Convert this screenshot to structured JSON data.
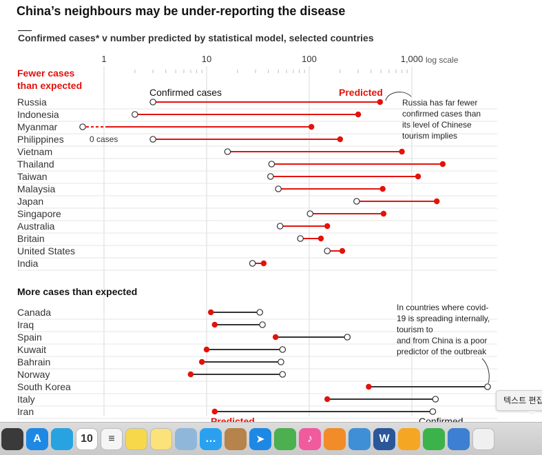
{
  "header": {
    "title": "China’s neighbours may be under-reporting the disease",
    "subtitle": "Confirmed cases* v number predicted by statistical model, selected countries"
  },
  "chart_data": {
    "type": "dot-plot",
    "scale": "log",
    "xlim": [
      0.5,
      1100
    ],
    "ticks": [
      {
        "value": 1,
        "label": "1"
      },
      {
        "value": 10,
        "label": "10"
      },
      {
        "value": 100,
        "label": "100"
      },
      {
        "value": 1000,
        "label": "1,000"
      }
    ],
    "scale_label": "log scale",
    "legend": {
      "confirmed": "Confirmed cases",
      "predicted": "Predicted",
      "zero_cases": "0 cases"
    },
    "groups": [
      {
        "heading_line1": "Fewer cases",
        "heading_line2": "than expected",
        "countries": [
          {
            "name": "Russia",
            "confirmed": 3,
            "predicted": 490
          },
          {
            "name": "Indonesia",
            "confirmed": 2,
            "predicted": 300
          },
          {
            "name": "Myanmar",
            "confirmed": 0,
            "predicted": 105
          },
          {
            "name": "Philippines",
            "confirmed": 3,
            "predicted": 200
          },
          {
            "name": "Vietnam",
            "confirmed": 16,
            "predicted": 800
          },
          {
            "name": "Thailand",
            "confirmed": 43,
            "predicted": 2000
          },
          {
            "name": "Taiwan",
            "confirmed": 42,
            "predicted": 1150
          },
          {
            "name": "Malaysia",
            "confirmed": 50,
            "predicted": 520
          },
          {
            "name": "Japan",
            "confirmed": 290,
            "predicted": 1750
          },
          {
            "name": "Singapore",
            "confirmed": 102,
            "predicted": 530
          },
          {
            "name": "Australia",
            "confirmed": 52,
            "predicted": 150
          },
          {
            "name": "Britain",
            "confirmed": 82,
            "predicted": 130
          },
          {
            "name": "United States",
            "confirmed": 150,
            "predicted": 210
          },
          {
            "name": "India",
            "confirmed": 28,
            "predicted": 36
          }
        ]
      },
      {
        "heading_line1": "More cases than expected",
        "heading_line2": "",
        "countries": [
          {
            "name": "Canada",
            "confirmed": 33,
            "predicted": 11
          },
          {
            "name": "Iraq",
            "confirmed": 35,
            "predicted": 12
          },
          {
            "name": "Spain",
            "confirmed": 235,
            "predicted": 47
          },
          {
            "name": "Kuwait",
            "confirmed": 55,
            "predicted": 10
          },
          {
            "name": "Bahrain",
            "confirmed": 53,
            "predicted": 9
          },
          {
            "name": "Norway",
            "confirmed": 55,
            "predicted": 7
          },
          {
            "name": "South Korea",
            "confirmed": 5800,
            "predicted": 380
          },
          {
            "name": "Italy",
            "confirmed": 1700,
            "predicted": 150
          },
          {
            "name": "Iran",
            "confirmed": 1600,
            "predicted": 12
          }
        ]
      }
    ],
    "annotations": {
      "russia": [
        "Russia has far fewer",
        "confirmed cases than",
        "its level of Chinese",
        "tourism implies"
      ],
      "korea": [
        "In countries where covid-",
        "19 is spreading internally,",
        "tourism to",
        "and from China is a poor",
        "predictor of the outbreak"
      ]
    },
    "bottom_labels": {
      "predicted": "Predicted",
      "confirmed": "Confirmed"
    },
    "colors": {
      "red": "#e3120b",
      "dark": "#121212",
      "grid": "#d9d9d9"
    }
  },
  "tooltip": {
    "text": "텍스트 편집"
  },
  "dock": {
    "items": [
      {
        "name": "dashboard-icon",
        "label": "",
        "color": "#3a3a3a"
      },
      {
        "name": "app-store-icon",
        "label": "A",
        "color": "#1e88e5"
      },
      {
        "name": "blue-app-icon",
        "label": "",
        "color": "#29a3e0"
      },
      {
        "name": "calendar-icon",
        "label": "10",
        "color": "#ffffff"
      },
      {
        "name": "reminders-icon",
        "label": "≡",
        "color": "#f5f5f5"
      },
      {
        "name": "stickies-icon",
        "label": "",
        "color": "#f7d84a"
      },
      {
        "name": "notes-icon",
        "label": "",
        "color": "#fbe27a"
      },
      {
        "name": "preview-icon",
        "label": "",
        "color": "#8fb7d9"
      },
      {
        "name": "messages-icon",
        "label": "…",
        "color": "#2aa1f0"
      },
      {
        "name": "contacts-icon",
        "label": "",
        "color": "#b5834b"
      },
      {
        "name": "safari-icon",
        "label": "➤",
        "color": "#1e88e5"
      },
      {
        "name": "chrome-icon",
        "label": "",
        "color": "#4caf50"
      },
      {
        "name": "itunes-icon",
        "label": "♪",
        "color": "#ef5b9c"
      },
      {
        "name": "ibooks-icon",
        "label": "",
        "color": "#f28c28"
      },
      {
        "name": "korean-app-icon",
        "label": "",
        "color": "#3f8fd6"
      },
      {
        "name": "word-icon",
        "label": "W",
        "color": "#2b579a"
      },
      {
        "name": "pages-icon",
        "label": "",
        "color": "#f5a623"
      },
      {
        "name": "numbers-icon",
        "label": "",
        "color": "#3bb34a"
      },
      {
        "name": "keynote-icon",
        "label": "",
        "color": "#3d7fd1"
      },
      {
        "name": "textedit-icon",
        "label": "",
        "color": "#f0f0f0"
      }
    ]
  }
}
